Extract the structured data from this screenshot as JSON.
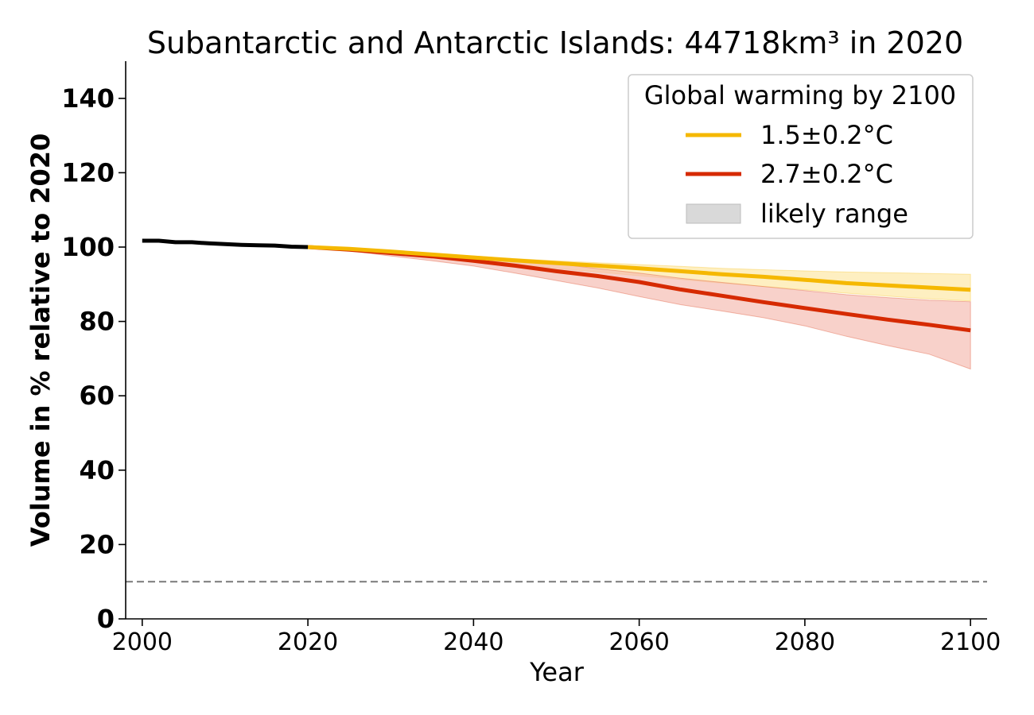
{
  "chart_data": {
    "type": "line",
    "title": "Subantarctic and Antarctic Islands: 44718km³ in 2020",
    "xlabel": "Year",
    "ylabel": "Volume in % relative to 2020",
    "xlim": [
      1998,
      2102
    ],
    "ylim": [
      0,
      150
    ],
    "xticks": [
      2000,
      2020,
      2040,
      2060,
      2080,
      2100
    ],
    "yticks": [
      0,
      20,
      40,
      60,
      80,
      100,
      120,
      140
    ],
    "grid": false,
    "reference_line": {
      "y": 10,
      "style": "dashed",
      "color": "#808080"
    },
    "legend": {
      "title": "Global warming by 2100",
      "placement": "top-right",
      "entries": [
        {
          "label": "1.5±0.2°C",
          "kind": "line",
          "color": "#f5b800"
        },
        {
          "label": "2.7±0.2°C",
          "kind": "line",
          "color": "#d62a00"
        },
        {
          "label": "likely range",
          "kind": "band",
          "color": "#d9d9d9"
        }
      ]
    },
    "series": [
      {
        "color": "#000000",
        "x": [
          2000,
          2002,
          2004,
          2006,
          2008,
          2010,
          2012,
          2014,
          2016,
          2018,
          2020
        ],
        "y": [
          101.7,
          101.7,
          101.3,
          101.3,
          101.0,
          100.8,
          100.6,
          100.5,
          100.4,
          100.1,
          100.0
        ]
      },
      {
        "name": "1.5±0.2°C",
        "color": "#f5b800",
        "band_color": "#fde6a0",
        "x": [
          2020,
          2025,
          2030,
          2035,
          2040,
          2045,
          2050,
          2055,
          2060,
          2065,
          2070,
          2075,
          2080,
          2085,
          2090,
          2095,
          2100
        ],
        "y": [
          100.0,
          99.5,
          98.8,
          98.0,
          97.2,
          96.4,
          95.7,
          95.0,
          94.3,
          93.5,
          92.7,
          92.0,
          91.2,
          90.3,
          89.7,
          89.1,
          88.5
        ],
        "lower": [
          100.0,
          99.3,
          98.5,
          97.6,
          96.5,
          95.4,
          94.3,
          93.3,
          92.3,
          91.3,
          90.3,
          89.4,
          88.5,
          87.6,
          86.8,
          86.1,
          85.5
        ],
        "upper": [
          100.0,
          99.6,
          99.0,
          98.3,
          97.6,
          96.9,
          96.3,
          95.8,
          95.3,
          94.8,
          94.3,
          93.9,
          93.6,
          93.3,
          93.1,
          92.9,
          92.7
        ]
      },
      {
        "name": "2.7±0.2°C",
        "color": "#d62a00",
        "band_color": "#f4b8ae",
        "x": [
          2020,
          2025,
          2030,
          2035,
          2040,
          2045,
          2050,
          2055,
          2060,
          2065,
          2070,
          2075,
          2080,
          2085,
          2090,
          2095,
          2100
        ],
        "y": [
          100.0,
          99.3,
          98.4,
          97.5,
          96.3,
          95.0,
          93.5,
          92.2,
          90.6,
          88.6,
          86.9,
          85.2,
          83.6,
          82.0,
          80.5,
          79.1,
          77.6
        ],
        "lower": [
          100.0,
          99.0,
          97.6,
          96.3,
          94.9,
          93.0,
          91.0,
          89.0,
          86.7,
          84.5,
          82.8,
          81.0,
          78.8,
          76.0,
          73.5,
          71.2,
          67.2
        ],
        "upper": [
          100.0,
          99.5,
          98.9,
          98.2,
          97.4,
          96.5,
          95.5,
          94.2,
          93.0,
          91.6,
          90.5,
          89.4,
          88.3,
          87.2,
          86.4,
          85.7,
          85.3
        ]
      }
    ]
  }
}
